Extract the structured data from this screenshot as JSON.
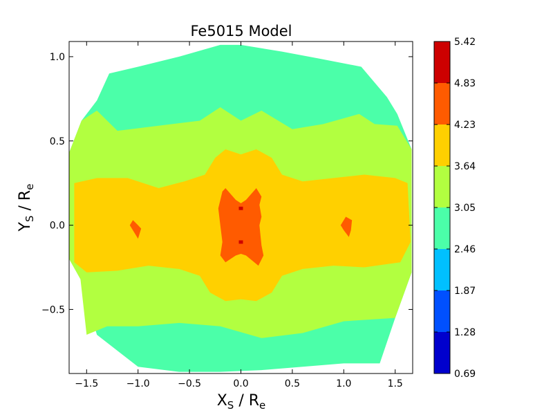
{
  "chart_data": {
    "type": "contour",
    "title": "Fe5015 Model",
    "xlabel": {
      "main": "X",
      "sub": "S",
      "sep": " / ",
      "main2": "R",
      "sub2": "e"
    },
    "ylabel": {
      "main": "Y",
      "sub": "S",
      "sep": " / ",
      "main2": "R",
      "sub2": "e"
    },
    "xlim": [
      -1.67,
      1.67
    ],
    "ylim": [
      -0.88,
      1.09
    ],
    "xticks": [
      -1.5,
      -1.0,
      -0.5,
      0.0,
      0.5,
      1.0,
      1.5
    ],
    "xtick_labels": [
      "−1.5",
      "−1.0",
      "−0.5",
      "0.0",
      "0.5",
      "1.0",
      "1.5"
    ],
    "yticks": [
      -0.5,
      0.0,
      0.5,
      1.0
    ],
    "ytick_labels": [
      "−0.5",
      "0.0",
      "0.5",
      "1.0"
    ],
    "levels": [
      0.69,
      1.28,
      1.87,
      2.46,
      3.05,
      3.64,
      4.23,
      4.83,
      5.42
    ],
    "level_labels": [
      "0.69",
      "1.28",
      "1.87",
      "2.46",
      "3.05",
      "3.64",
      "4.23",
      "4.83",
      "5.42"
    ],
    "level_colors": [
      "#0000cd",
      "#0050ff",
      "#00c0ff",
      "#4bffa9",
      "#b2ff40",
      "#ffd000",
      "#ff5b00",
      "#cd0000"
    ],
    "regions": [
      {
        "name": "outer-band",
        "level_index": 3,
        "points": [
          [
            -1.28,
            0.9
          ],
          [
            -1.0,
            0.94
          ],
          [
            -0.6,
            1.0
          ],
          [
            -0.2,
            1.07
          ],
          [
            0.0,
            1.07
          ],
          [
            0.4,
            1.03
          ],
          [
            0.75,
            0.99
          ],
          [
            1.17,
            0.94
          ],
          [
            1.42,
            0.76
          ],
          [
            1.52,
            0.66
          ],
          [
            1.66,
            0.45
          ],
          [
            1.66,
            -0.28
          ],
          [
            1.5,
            -0.55
          ],
          [
            1.35,
            -0.82
          ],
          [
            1.0,
            -0.82
          ],
          [
            0.6,
            -0.84
          ],
          [
            0.2,
            -0.86
          ],
          [
            -0.2,
            -0.87
          ],
          [
            -0.6,
            -0.87
          ],
          [
            -1.0,
            -0.84
          ],
          [
            -1.4,
            -0.65
          ],
          [
            -1.56,
            -0.32
          ],
          [
            -1.67,
            -0.2
          ],
          [
            -1.67,
            0.43
          ],
          [
            -1.55,
            0.62
          ],
          [
            -1.4,
            0.74
          ]
        ]
      },
      {
        "name": "middle-band",
        "level_index": 4,
        "points": [
          [
            -1.4,
            0.68
          ],
          [
            -1.2,
            0.56
          ],
          [
            -0.8,
            0.59
          ],
          [
            -0.4,
            0.62
          ],
          [
            -0.2,
            0.7
          ],
          [
            0.0,
            0.62
          ],
          [
            0.2,
            0.68
          ],
          [
            0.5,
            0.57
          ],
          [
            0.8,
            0.6
          ],
          [
            1.15,
            0.66
          ],
          [
            1.3,
            0.6
          ],
          [
            1.52,
            0.59
          ],
          [
            1.66,
            0.45
          ],
          [
            1.66,
            -0.28
          ],
          [
            1.5,
            -0.55
          ],
          [
            1.0,
            -0.57
          ],
          [
            0.6,
            -0.64
          ],
          [
            0.2,
            -0.67
          ],
          [
            -0.2,
            -0.6
          ],
          [
            -0.6,
            -0.58
          ],
          [
            -1.0,
            -0.6
          ],
          [
            -1.3,
            -0.6
          ],
          [
            -1.5,
            -0.65
          ],
          [
            -1.56,
            -0.32
          ],
          [
            -1.67,
            -0.2
          ],
          [
            -1.67,
            0.43
          ],
          [
            -1.55,
            0.62
          ]
        ]
      },
      {
        "name": "inner-band",
        "level_index": 5,
        "points": [
          [
            -1.62,
            0.25
          ],
          [
            -1.4,
            0.28
          ],
          [
            -1.1,
            0.28
          ],
          [
            -0.8,
            0.22
          ],
          [
            -0.55,
            0.26
          ],
          [
            -0.35,
            0.3
          ],
          [
            -0.25,
            0.4
          ],
          [
            -0.15,
            0.45
          ],
          [
            0.0,
            0.42
          ],
          [
            0.15,
            0.45
          ],
          [
            0.3,
            0.4
          ],
          [
            0.4,
            0.3
          ],
          [
            0.6,
            0.26
          ],
          [
            0.9,
            0.28
          ],
          [
            1.2,
            0.3
          ],
          [
            1.5,
            0.28
          ],
          [
            1.62,
            0.25
          ],
          [
            1.65,
            -0.1
          ],
          [
            1.55,
            -0.22
          ],
          [
            1.2,
            -0.25
          ],
          [
            0.9,
            -0.24
          ],
          [
            0.6,
            -0.26
          ],
          [
            0.4,
            -0.3
          ],
          [
            0.3,
            -0.4
          ],
          [
            0.15,
            -0.45
          ],
          [
            0.0,
            -0.44
          ],
          [
            -0.15,
            -0.45
          ],
          [
            -0.3,
            -0.4
          ],
          [
            -0.4,
            -0.3
          ],
          [
            -0.6,
            -0.26
          ],
          [
            -0.9,
            -0.24
          ],
          [
            -1.2,
            -0.27
          ],
          [
            -1.5,
            -0.28
          ],
          [
            -1.62,
            -0.22
          ]
        ]
      },
      {
        "name": "core-left",
        "level_index": 6,
        "points": [
          [
            -1.05,
            0.03
          ],
          [
            -1.0,
            0.0
          ],
          [
            -0.97,
            -0.02
          ],
          [
            -1.0,
            -0.08
          ],
          [
            -1.03,
            -0.05
          ],
          [
            -1.08,
            0.0
          ]
        ]
      },
      {
        "name": "core-right",
        "level_index": 6,
        "points": [
          [
            1.02,
            0.05
          ],
          [
            1.08,
            0.03
          ],
          [
            1.07,
            -0.03
          ],
          [
            1.05,
            -0.07
          ],
          [
            1.0,
            -0.03
          ],
          [
            0.97,
            0.0
          ]
        ]
      },
      {
        "name": "core-center",
        "level_index": 6,
        "points": [
          [
            -0.18,
            0.2
          ],
          [
            -0.15,
            0.22
          ],
          [
            -0.05,
            0.15
          ],
          [
            0.0,
            0.13
          ],
          [
            0.05,
            0.15
          ],
          [
            0.15,
            0.22
          ],
          [
            0.2,
            0.17
          ],
          [
            0.18,
            0.12
          ],
          [
            0.2,
            0.05
          ],
          [
            0.18,
            0.0
          ],
          [
            0.2,
            -0.12
          ],
          [
            0.22,
            -0.18
          ],
          [
            0.17,
            -0.24
          ],
          [
            0.05,
            -0.18
          ],
          [
            0.0,
            -0.17
          ],
          [
            -0.05,
            -0.18
          ],
          [
            -0.15,
            -0.22
          ],
          [
            -0.2,
            -0.18
          ],
          [
            -0.18,
            -0.1
          ],
          [
            -0.2,
            0.0
          ],
          [
            -0.22,
            0.1
          ]
        ]
      },
      {
        "name": "peak-upper",
        "level_index": 7,
        "points": [
          [
            -0.02,
            0.11
          ],
          [
            0.02,
            0.11
          ],
          [
            0.02,
            0.09
          ],
          [
            -0.02,
            0.09
          ]
        ]
      },
      {
        "name": "peak-lower",
        "level_index": 7,
        "points": [
          [
            -0.02,
            -0.09
          ],
          [
            0.02,
            -0.09
          ],
          [
            0.02,
            -0.11
          ],
          [
            -0.02,
            -0.11
          ]
        ]
      }
    ]
  }
}
